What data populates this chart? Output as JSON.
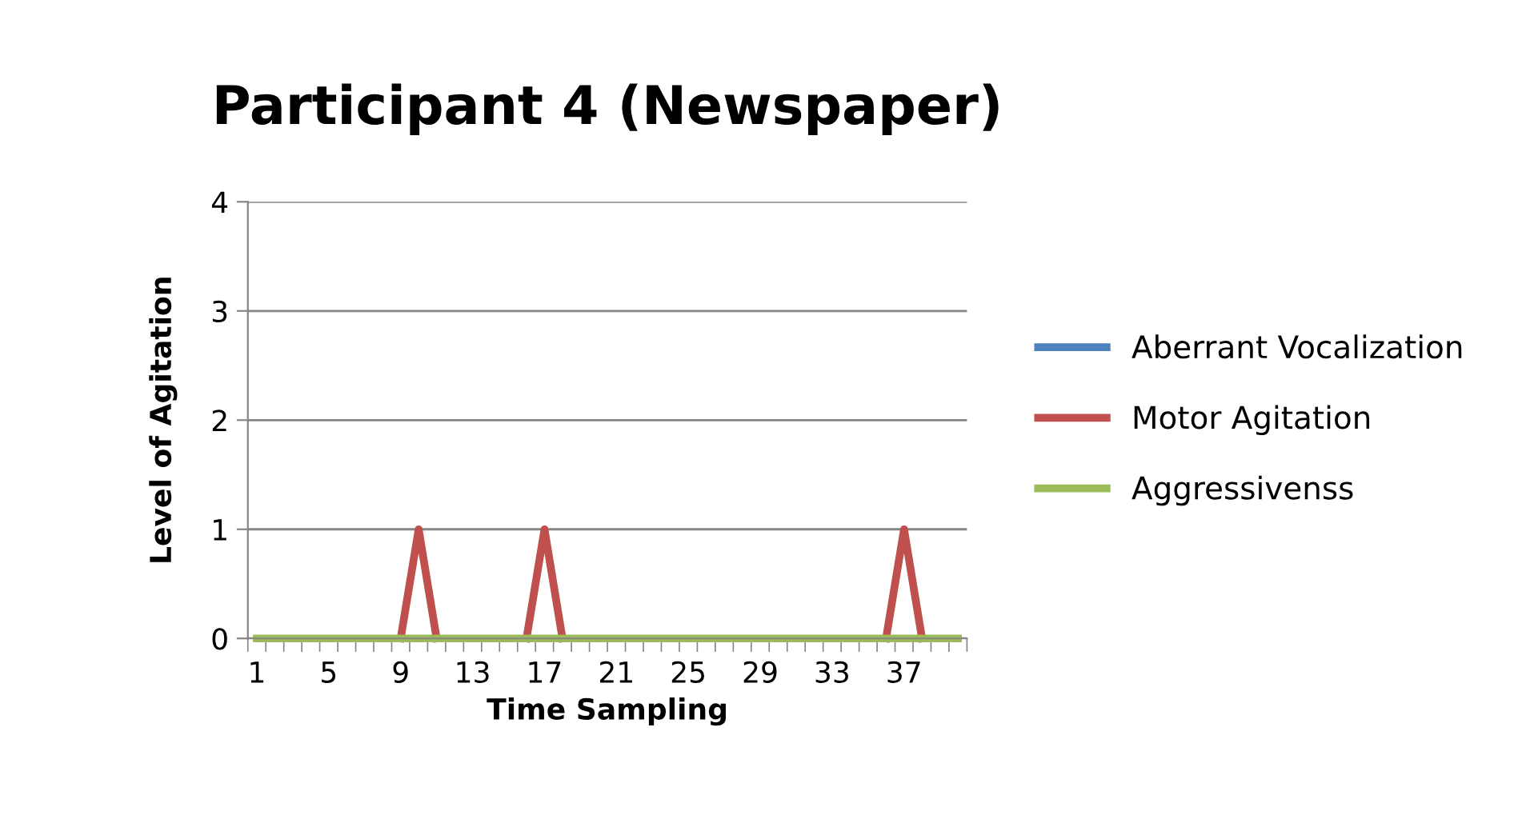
{
  "chart_data": {
    "type": "line",
    "title": "Participant 4 (Newspaper)",
    "xlabel": "Time Sampling",
    "ylabel": "Level of Agitation",
    "categories": [
      "1",
      null,
      null,
      null,
      "5",
      null,
      null,
      null,
      "9",
      null,
      null,
      null,
      "13",
      null,
      null,
      null,
      "17",
      null,
      null,
      null,
      "21",
      null,
      null,
      null,
      "25",
      null,
      null,
      null,
      "29",
      null,
      null,
      null,
      "33",
      null,
      null,
      null,
      "37",
      null,
      null,
      null
    ],
    "series": [
      {
        "name": "Aberrant Vocalization",
        "color": "#4f81bd",
        "values": [
          null,
          null,
          null,
          null,
          null,
          null,
          null,
          null,
          null,
          null,
          null,
          null,
          null,
          null,
          null,
          null,
          null,
          null,
          null,
          null,
          null,
          null,
          null,
          null,
          null,
          null,
          null,
          null,
          null,
          null,
          null,
          null,
          null,
          null,
          null,
          null,
          null,
          null,
          null,
          null
        ]
      },
      {
        "name": "Motor Agitation",
        "color": "#c0504d",
        "values": [
          null,
          null,
          null,
          null,
          null,
          null,
          null,
          null,
          0,
          1,
          0,
          null,
          null,
          null,
          null,
          0,
          1,
          0,
          null,
          null,
          null,
          null,
          null,
          null,
          null,
          null,
          null,
          null,
          null,
          null,
          null,
          null,
          null,
          null,
          null,
          0,
          1,
          0,
          null,
          null
        ]
      },
      {
        "name": "Aggressivenss",
        "color": "#9bbb59",
        "values": [
          0,
          0,
          0,
          0,
          0,
          0,
          0,
          0,
          0,
          0,
          0,
          0,
          0,
          0,
          0,
          0,
          0,
          0,
          0,
          0,
          0,
          0,
          0,
          0,
          0,
          0,
          0,
          0,
          0,
          0,
          0,
          0,
          0,
          0,
          0,
          0,
          0,
          0,
          0,
          0
        ]
      }
    ],
    "ylim": [
      0,
      4
    ],
    "yticks": [
      0,
      1,
      2,
      3,
      4
    ],
    "grid": "y",
    "legend": "right",
    "marker": "none",
    "line_style": "solid"
  }
}
